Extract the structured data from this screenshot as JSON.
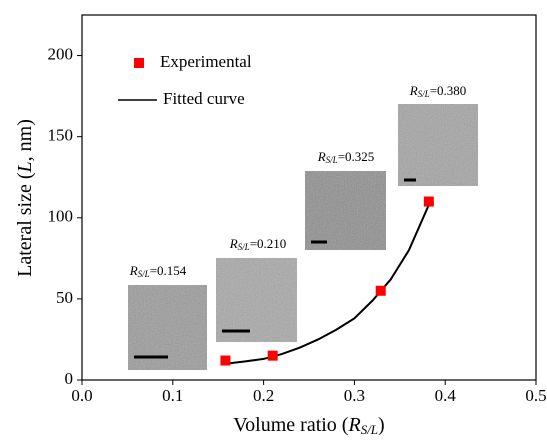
{
  "chart_data": {
    "type": "scatter",
    "xlabel": [
      "Volume ratio (",
      "R",
      "S/L",
      ")"
    ],
    "ylabel": [
      "Lateral size (",
      "L",
      ", nm)"
    ],
    "xlim": [
      0,
      0.5
    ],
    "xticks": [
      {
        "value": 0,
        "label": "0.0"
      },
      0.1,
      0.2,
      0.3,
      0.4,
      0.5
    ],
    "ylim": [
      0,
      225
    ],
    "yticks": [
      0,
      50,
      100,
      150,
      200
    ],
    "grid": false,
    "legend": "upper left",
    "series": [
      {
        "name": "Experimental",
        "color": "#ff0000",
        "marker": "square",
        "x": [
          0.158,
          0.21,
          0.329,
          0.382
        ],
        "values": [
          12,
          15,
          55,
          110
        ]
      },
      {
        "name": "Fitted curve",
        "color": "#000000",
        "marker": "line",
        "x": [
          0.158,
          0.18,
          0.2,
          0.22,
          0.24,
          0.26,
          0.28,
          0.3,
          0.32,
          0.34,
          0.36,
          0.382
        ],
        "values": [
          10,
          11.5,
          13,
          16,
          20,
          25,
          31,
          38,
          49,
          62,
          80,
          108
        ]
      }
    ],
    "annotations": [
      {
        "symbol": "R",
        "subscript": "S/L",
        "text": "=0.154"
      },
      {
        "symbol": "R",
        "subscript": "S/L",
        "text": "=0.210"
      },
      {
        "symbol": "R",
        "subscript": "S/L",
        "text": "=0.325"
      },
      {
        "symbol": "R",
        "subscript": "S/L",
        "text": "=0.380"
      }
    ]
  }
}
